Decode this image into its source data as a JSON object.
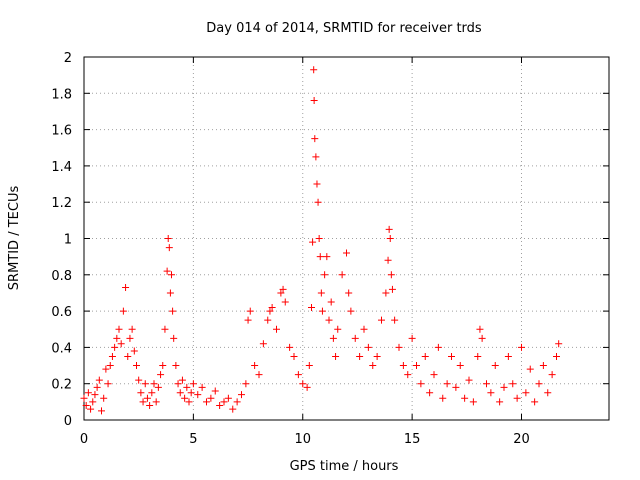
{
  "chart_data": {
    "type": "scatter",
    "title": "Day 014 of 2014, SRMTID for receiver trds",
    "xlabel": "GPS time / hours",
    "ylabel": "SRMTID / TECUs",
    "xlim": [
      0,
      24
    ],
    "ylim": [
      0,
      2
    ],
    "xticks": [
      0,
      5,
      10,
      15,
      20
    ],
    "xtick_labels": [
      "0",
      "5",
      "10",
      "15",
      "20"
    ],
    "yticks": [
      0,
      0.2,
      0.4,
      0.6,
      0.8,
      1,
      1.2,
      1.4,
      1.6,
      1.8,
      2
    ],
    "ytick_labels": [
      "0",
      "0.2",
      "0.4",
      "0.6",
      "0.8",
      "1",
      "1.2",
      "1.4",
      "1.6",
      "1.8",
      "2"
    ],
    "grid": true,
    "marker": "plus",
    "color": "#ff0000",
    "series": [
      {
        "name": "SRMTID",
        "x": [
          0.0,
          0.1,
          0.2,
          0.3,
          0.4,
          0.5,
          0.6,
          0.7,
          0.8,
          0.9,
          1.0,
          1.1,
          1.2,
          1.3,
          1.4,
          1.5,
          1.6,
          1.7,
          1.8,
          1.9,
          2.0,
          2.1,
          2.2,
          2.3,
          2.4,
          2.5,
          2.6,
          2.7,
          2.8,
          2.9,
          3.0,
          3.1,
          3.2,
          3.3,
          3.4,
          3.5,
          3.6,
          3.7,
          3.8,
          3.85,
          3.9,
          3.95,
          4.0,
          4.05,
          4.1,
          4.2,
          4.3,
          4.4,
          4.5,
          4.6,
          4.7,
          4.8,
          4.9,
          5.0,
          5.2,
          5.4,
          5.6,
          5.8,
          6.0,
          6.2,
          6.4,
          6.6,
          6.8,
          7.0,
          7.2,
          7.4,
          7.5,
          7.6,
          7.8,
          8.0,
          8.2,
          8.4,
          8.5,
          8.6,
          8.8,
          9.0,
          9.1,
          9.2,
          9.4,
          9.6,
          9.8,
          10.0,
          10.2,
          10.3,
          10.4,
          10.45,
          10.5,
          10.52,
          10.55,
          10.6,
          10.65,
          10.7,
          10.75,
          10.8,
          10.85,
          10.9,
          11.0,
          11.1,
          11.2,
          11.3,
          11.4,
          11.5,
          11.6,
          11.8,
          12.0,
          12.1,
          12.2,
          12.4,
          12.6,
          12.8,
          13.0,
          13.2,
          13.4,
          13.6,
          13.8,
          13.9,
          13.95,
          14.0,
          14.05,
          14.1,
          14.2,
          14.4,
          14.6,
          14.8,
          15.0,
          15.2,
          15.4,
          15.6,
          15.8,
          16.0,
          16.2,
          16.4,
          16.6,
          16.8,
          17.0,
          17.2,
          17.4,
          17.6,
          17.8,
          18.0,
          18.1,
          18.2,
          18.4,
          18.6,
          18.8,
          19.0,
          19.2,
          19.4,
          19.6,
          19.8,
          20.0,
          20.2,
          20.4,
          20.6,
          20.8,
          21.0,
          21.2,
          21.4,
          21.6,
          21.7
        ],
        "y": [
          0.12,
          0.08,
          0.15,
          0.06,
          0.1,
          0.14,
          0.18,
          0.22,
          0.05,
          0.12,
          0.28,
          0.2,
          0.3,
          0.35,
          0.4,
          0.45,
          0.5,
          0.42,
          0.6,
          0.73,
          0.35,
          0.45,
          0.5,
          0.38,
          0.3,
          0.22,
          0.15,
          0.1,
          0.2,
          0.12,
          0.08,
          0.15,
          0.2,
          0.1,
          0.18,
          0.25,
          0.3,
          0.5,
          0.82,
          1.0,
          0.95,
          0.7,
          0.8,
          0.6,
          0.45,
          0.3,
          0.2,
          0.15,
          0.22,
          0.12,
          0.18,
          0.1,
          0.15,
          0.2,
          0.14,
          0.18,
          0.1,
          0.12,
          0.16,
          0.08,
          0.1,
          0.12,
          0.06,
          0.1,
          0.14,
          0.2,
          0.55,
          0.6,
          0.3,
          0.25,
          0.42,
          0.55,
          0.6,
          0.62,
          0.5,
          0.7,
          0.72,
          0.65,
          0.4,
          0.35,
          0.25,
          0.2,
          0.18,
          0.3,
          0.62,
          0.98,
          1.93,
          1.76,
          1.55,
          1.45,
          1.3,
          1.2,
          1.0,
          0.9,
          0.7,
          0.6,
          0.8,
          0.9,
          0.55,
          0.65,
          0.45,
          0.35,
          0.5,
          0.8,
          0.92,
          0.7,
          0.6,
          0.45,
          0.35,
          0.5,
          0.4,
          0.3,
          0.35,
          0.55,
          0.7,
          0.88,
          1.05,
          1.0,
          0.8,
          0.72,
          0.55,
          0.4,
          0.3,
          0.25,
          0.45,
          0.3,
          0.2,
          0.35,
          0.15,
          0.25,
          0.4,
          0.12,
          0.2,
          0.35,
          0.18,
          0.3,
          0.12,
          0.22,
          0.1,
          0.35,
          0.5,
          0.45,
          0.2,
          0.15,
          0.3,
          0.1,
          0.18,
          0.35,
          0.2,
          0.12,
          0.4,
          0.15,
          0.28,
          0.1,
          0.2,
          0.3,
          0.15,
          0.25,
          0.35,
          0.42
        ]
      }
    ]
  }
}
